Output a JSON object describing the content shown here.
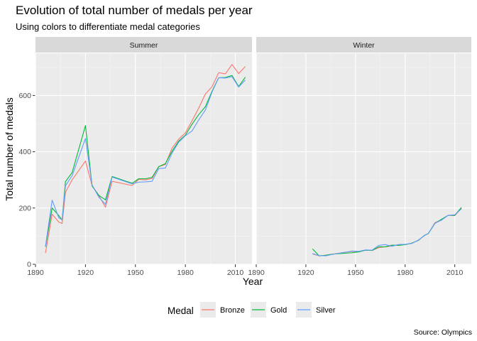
{
  "chart_data": {
    "type": "line",
    "title": "Evolution of total number of medals per year",
    "subtitle": "Using colors to differentiate medal categories",
    "xlabel": "Year",
    "ylabel": "Total number of medals",
    "caption": "Source: Olympics",
    "xlim": [
      1890,
      2020
    ],
    "ylim": [
      0,
      750
    ],
    "xticks": [
      1890,
      1920,
      1950,
      1980,
      2010
    ],
    "yticks": [
      0,
      200,
      400,
      600
    ],
    "grid": true,
    "legend": {
      "title": "Medal",
      "position": "bottom",
      "entries": [
        {
          "name": "Bronze",
          "color": "#F8766D"
        },
        {
          "name": "Gold",
          "color": "#00BA38"
        },
        {
          "name": "Silver",
          "color": "#619CFF"
        }
      ]
    },
    "panels": [
      {
        "label": "Summer",
        "x": [
          1896,
          1900,
          1904,
          1906,
          1908,
          1912,
          1920,
          1924,
          1928,
          1932,
          1936,
          1948,
          1952,
          1956,
          1960,
          1964,
          1968,
          1972,
          1976,
          1980,
          1984,
          1988,
          1992,
          1996,
          2000,
          2004,
          2008,
          2012,
          2016
        ],
        "series": [
          {
            "name": "Bronze",
            "values": [
              40,
              178,
              150,
              145,
              256,
              300,
              367,
              280,
              245,
              203,
              295,
              280,
              302,
              300,
              305,
              347,
              355,
              413,
              445,
              467,
              510,
              555,
              605,
              631,
              681,
              677,
              710,
              678,
              703
            ]
          },
          {
            "name": "Gold",
            "values": [
              62,
              200,
              173,
              157,
              294,
              326,
              493,
              278,
              245,
              229,
              312,
              288,
              304,
              304,
              309,
              347,
              358,
              402,
              438,
              459,
              498,
              532,
              560,
              615,
              663,
              664,
              671,
              632,
              665
            ]
          },
          {
            "name": "Silver",
            "values": [
              64,
              228,
              165,
              158,
              279,
              315,
              447,
              282,
              239,
              213,
              310,
              286,
              292,
              293,
              295,
              340,
              342,
              395,
              434,
              457,
              474,
              513,
              548,
              612,
              663,
              662,
              667,
              630,
              655
            ]
          }
        ]
      },
      {
        "label": "Winter",
        "x": [
          1924,
          1928,
          1932,
          1936,
          1948,
          1952,
          1956,
          1960,
          1964,
          1968,
          1972,
          1976,
          1980,
          1984,
          1988,
          1992,
          1994,
          1998,
          2002,
          2006,
          2010,
          2014
        ],
        "series": [
          {
            "name": "Bronze",
            "values": [
              37,
              30,
              32,
              36,
              46,
              45,
              50,
              49,
              59,
              62,
              65,
              70,
              70,
              75,
              85,
              104,
              109,
              148,
              158,
              174,
              173,
              199
            ]
          },
          {
            "name": "Gold",
            "values": [
              55,
              30,
              32,
              36,
              41,
              44,
              50,
              49,
              62,
              62,
              68,
              67,
              70,
              75,
              85,
              104,
              109,
              145,
              160,
              174,
              174,
              202
            ]
          },
          {
            "name": "Silver",
            "values": [
              38,
              31,
              30,
              35,
              47,
              46,
              51,
              50,
              67,
              70,
              64,
              70,
              71,
              74,
              86,
              103,
              110,
              146,
              157,
              174,
              176,
              197
            ]
          }
        ]
      }
    ]
  }
}
